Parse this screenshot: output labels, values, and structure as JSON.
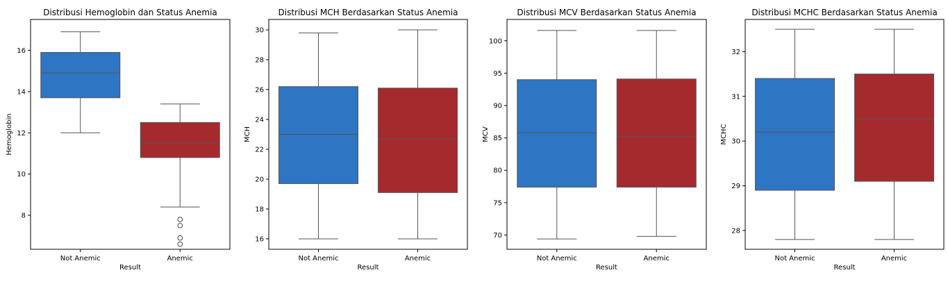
{
  "chart_data": [
    {
      "type": "box",
      "title": "Distribusi Hemoglobin dan Status Anemia",
      "xlabel": "Result",
      "ylabel": "Hemoglobin",
      "categories": [
        "Not Anemic",
        "Anemic"
      ],
      "colors": [
        "#2e75c3",
        "#a52a2e"
      ],
      "ylim": [
        6.35,
        17.5
      ],
      "yticks": [
        8,
        10,
        12,
        14,
        16
      ],
      "boxes": [
        {
          "whisker_low": 12.0,
          "q1": 13.7,
          "median": 14.9,
          "q3": 15.9,
          "whisker_high": 16.9,
          "outliers": []
        },
        {
          "whisker_low": 8.4,
          "q1": 10.8,
          "median": 11.5,
          "q3": 12.5,
          "whisker_high": 13.4,
          "outliers": [
            7.8,
            7.5,
            6.9,
            6.6
          ]
        }
      ]
    },
    {
      "type": "box",
      "title": "Distribusi MCH Berdasarkan Status Anemia",
      "xlabel": "Result",
      "ylabel": "MCH",
      "categories": [
        "Not Anemic",
        "Anemic"
      ],
      "colors": [
        "#2e75c3",
        "#a52a2e"
      ],
      "ylim": [
        15.3,
        30.7
      ],
      "yticks": [
        16,
        18,
        20,
        22,
        24,
        26,
        28,
        30
      ],
      "boxes": [
        {
          "whisker_low": 16.0,
          "q1": 19.7,
          "median": 23.0,
          "q3": 26.2,
          "whisker_high": 29.8,
          "outliers": []
        },
        {
          "whisker_low": 16.0,
          "q1": 19.1,
          "median": 22.7,
          "q3": 26.1,
          "whisker_high": 30.0,
          "outliers": []
        }
      ]
    },
    {
      "type": "box",
      "title": "Distribusi MCV Berdasarkan Status Anemia",
      "xlabel": "Result",
      "ylabel": "MCV",
      "categories": [
        "Not Anemic",
        "Anemic"
      ],
      "colors": [
        "#2e75c3",
        "#a52a2e"
      ],
      "ylim": [
        67.8,
        103.3
      ],
      "yticks": [
        70,
        75,
        80,
        85,
        90,
        95,
        100
      ],
      "boxes": [
        {
          "whisker_low": 69.4,
          "q1": 77.4,
          "median": 85.8,
          "q3": 94.0,
          "whisker_high": 101.6,
          "outliers": []
        },
        {
          "whisker_low": 69.8,
          "q1": 77.4,
          "median": 85.2,
          "q3": 94.1,
          "whisker_high": 101.6,
          "outliers": []
        }
      ]
    },
    {
      "type": "box",
      "title": "Distribusi MCHC Berdasarkan Status Anemia",
      "xlabel": "Result",
      "ylabel": "MCHC",
      "categories": [
        "Not Anemic",
        "Anemic"
      ],
      "colors": [
        "#2e75c3",
        "#a52a2e"
      ],
      "ylim": [
        27.58,
        32.72
      ],
      "yticks": [
        28,
        29,
        30,
        31,
        32
      ],
      "boxes": [
        {
          "whisker_low": 27.8,
          "q1": 28.9,
          "median": 30.2,
          "q3": 31.4,
          "whisker_high": 32.5,
          "outliers": []
        },
        {
          "whisker_low": 27.8,
          "q1": 29.1,
          "median": 30.5,
          "q3": 31.5,
          "whisker_high": 32.5,
          "outliers": []
        }
      ]
    }
  ]
}
